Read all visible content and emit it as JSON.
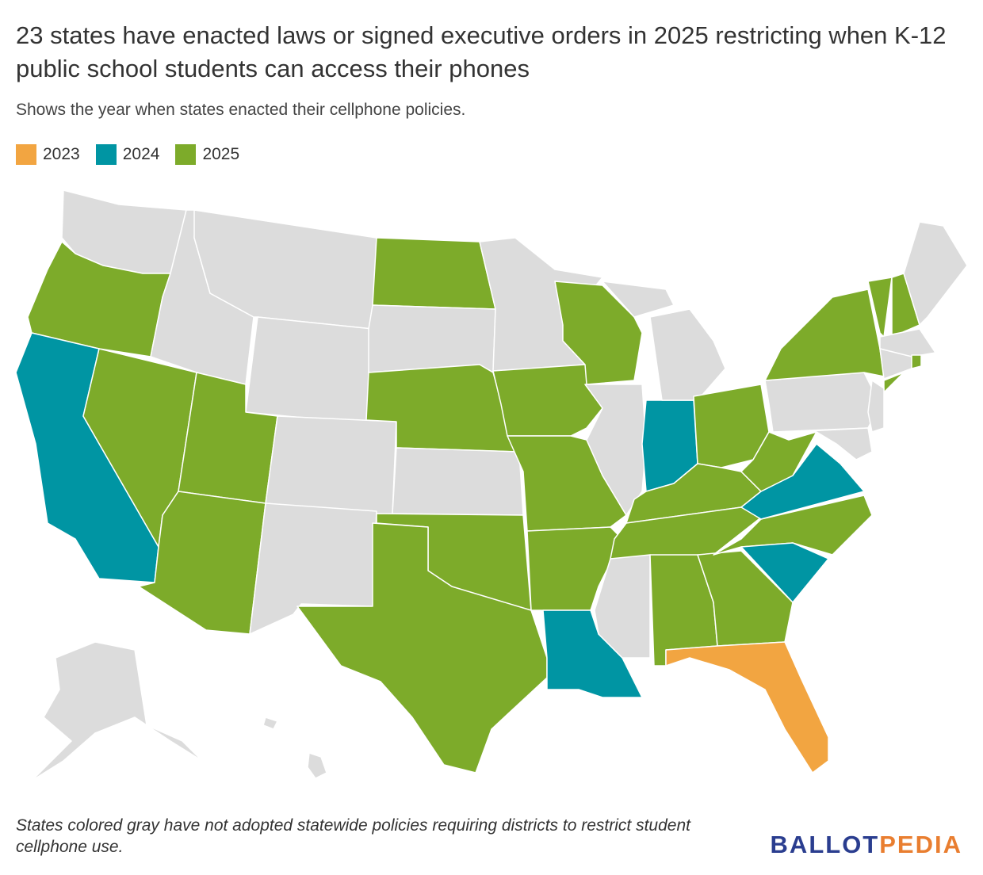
{
  "header": {
    "title": "23 states have enacted laws or signed executive orders in 2025 restricting when K-12 public school students can access their phones",
    "subtitle": "Shows the year when states enacted their cellphone policies."
  },
  "legend": [
    {
      "label": "2023",
      "color": "#f2a541"
    },
    {
      "label": "2024",
      "color": "#0095a3"
    },
    {
      "label": "2025",
      "color": "#7dab2a"
    }
  ],
  "map": {
    "base_color": "#dcdcdc",
    "border_color": "#ffffff"
  },
  "footer": {
    "note": "States colored gray have not adopted statewide policies requiring districts to restrict student cellphone use.",
    "logo": [
      {
        "text": "BALLOT",
        "color": "#2a3d8f"
      },
      {
        "text": "PEDIA",
        "color": "#e97e30"
      }
    ]
  }
}
